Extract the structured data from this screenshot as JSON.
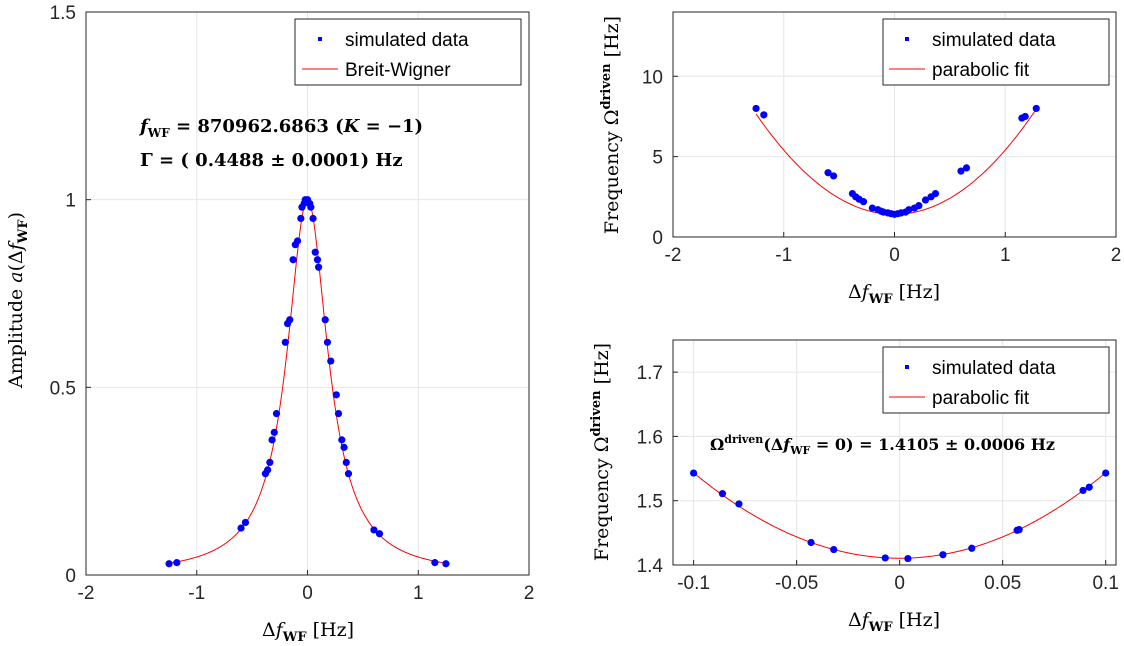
{
  "chart_data": [
    {
      "id": "left",
      "type": "scatter",
      "xlabel": "Δf_WF [Hz]",
      "ylabel": "Amplitude a(Δf_WF)",
      "xlim": [
        -2,
        2
      ],
      "ylim": [
        0,
        1.5
      ],
      "xticks": [
        -2,
        -1,
        0,
        1,
        2
      ],
      "yticks": [
        0,
        0.5,
        1,
        1.5
      ],
      "xtick_labels": [
        "-2",
        "-1",
        "0",
        "1",
        "2"
      ],
      "ytick_labels": [
        "0",
        "0.5",
        "1",
        "1.5"
      ],
      "grid": true,
      "legend": [
        "simulated data",
        "Breit-Wigner"
      ],
      "legend_position": "top-right",
      "annotations": [
        "f_WF = 870962.6863 (K = −1)",
        "Γ = ( 0.4488 ± 0.0001) Hz"
      ],
      "fit": {
        "name": "Breit-Wigner",
        "gamma": 0.4488,
        "center": 0
      },
      "series": [
        {
          "name": "simulated data",
          "x": [
            -1.25,
            -1.18,
            -0.6,
            -0.56,
            -0.38,
            -0.36,
            -0.34,
            -0.32,
            -0.3,
            -0.28,
            -0.2,
            -0.18,
            -0.16,
            -0.13,
            -0.11,
            -0.09,
            -0.06,
            -0.05,
            -0.03,
            -0.02,
            0.0,
            0.02,
            0.03,
            0.05,
            0.07,
            0.09,
            0.1,
            0.16,
            0.18,
            0.21,
            0.26,
            0.28,
            0.31,
            0.33,
            0.35,
            0.37,
            0.6,
            0.65,
            1.15,
            1.25
          ],
          "y": [
            0.03,
            0.033,
            0.125,
            0.14,
            0.27,
            0.28,
            0.3,
            0.36,
            0.38,
            0.43,
            0.62,
            0.67,
            0.68,
            0.84,
            0.88,
            0.89,
            0.95,
            0.98,
            0.99,
            1.0,
            1.0,
            0.99,
            0.98,
            0.95,
            0.86,
            0.84,
            0.82,
            0.68,
            0.62,
            0.57,
            0.48,
            0.43,
            0.36,
            0.34,
            0.3,
            0.27,
            0.12,
            0.11,
            0.033,
            0.03
          ]
        }
      ]
    },
    {
      "id": "top-right",
      "type": "scatter",
      "xlabel": "Δf_WF [Hz]",
      "ylabel": "Frequency Ω^driven [Hz]",
      "xlim": [
        -2,
        2
      ],
      "ylim": [
        0,
        14
      ],
      "xticks": [
        -2,
        -1,
        0,
        1,
        2
      ],
      "yticks": [
        0,
        5,
        10
      ],
      "xtick_labels": [
        "-2",
        "-1",
        "0",
        "1",
        "2"
      ],
      "ytick_labels": [
        "0",
        "5",
        "10"
      ],
      "grid": true,
      "legend": [
        "simulated data",
        "parabolic fit"
      ],
      "legend_position": "top-right",
      "fit": {
        "name": "parabolic fit",
        "a": 4.0,
        "b": 0,
        "c": 1.41
      },
      "series": [
        {
          "name": "simulated data",
          "x": [
            -1.25,
            -1.18,
            -0.6,
            -0.55,
            -0.38,
            -0.35,
            -0.32,
            -0.28,
            -0.2,
            -0.15,
            -0.12,
            -0.1,
            -0.06,
            -0.03,
            0.0,
            0.03,
            0.06,
            0.1,
            0.13,
            0.18,
            0.22,
            0.28,
            0.33,
            0.37,
            0.6,
            0.65,
            1.15,
            1.18,
            1.28
          ],
          "y": [
            8.0,
            7.6,
            4.0,
            3.8,
            2.7,
            2.5,
            2.35,
            2.2,
            1.8,
            1.7,
            1.6,
            1.55,
            1.5,
            1.45,
            1.41,
            1.45,
            1.5,
            1.55,
            1.7,
            1.8,
            1.95,
            2.3,
            2.5,
            2.7,
            4.1,
            4.3,
            7.4,
            7.5,
            8.0
          ]
        }
      ]
    },
    {
      "id": "bottom-right",
      "type": "scatter",
      "xlabel": "Δf_WF [Hz]",
      "ylabel": "Frequency Ω^driven [Hz]",
      "xlim": [
        -0.11,
        0.105
      ],
      "ylim": [
        1.4,
        1.75
      ],
      "xticks": [
        -0.1,
        -0.05,
        0,
        0.05,
        0.1
      ],
      "yticks": [
        1.4,
        1.5,
        1.6,
        1.7
      ],
      "xtick_labels": [
        "-0.1",
        "-0.05",
        "0",
        "0.05",
        "0.1"
      ],
      "ytick_labels": [
        "1.4",
        "1.5",
        "1.6",
        "1.7"
      ],
      "grid": true,
      "legend": [
        "simulated data",
        "parabolic fit"
      ],
      "legend_position": "top-right",
      "annotations": [
        "Ω^driven(Δf_WF = 0) = 1.4105 ± 0.0006 Hz"
      ],
      "fit": {
        "name": "parabolic fit",
        "a": 13.3,
        "b": 0,
        "c": 1.4105
      },
      "series": [
        {
          "name": "simulated data",
          "x": [
            -0.1,
            -0.086,
            -0.078,
            -0.043,
            -0.032,
            -0.007,
            0.004,
            0.021,
            0.035,
            0.057,
            0.058,
            0.089,
            0.092,
            0.1
          ],
          "y": [
            1.543,
            1.511,
            1.495,
            1.435,
            1.424,
            1.411,
            1.41,
            1.416,
            1.426,
            1.454,
            1.455,
            1.516,
            1.521,
            1.543
          ]
        }
      ]
    }
  ],
  "text": {
    "left_ann1": "f_WF = 870962.6863 (K = −1)",
    "left_ann2": "Γ = ( 0.4488 ± 0.0001) Hz",
    "br_ann": "Ω^driven(Δf_WF = 0) = 1.4105 ± 0.0006 Hz",
    "legend_data": "simulated data",
    "legend_bw": "Breit-Wigner",
    "legend_parab": "parabolic fit"
  },
  "colors": {
    "points": "#0000ff",
    "fit": "#ff0000",
    "grid": "#e6e6e6",
    "axes": "#262626"
  }
}
